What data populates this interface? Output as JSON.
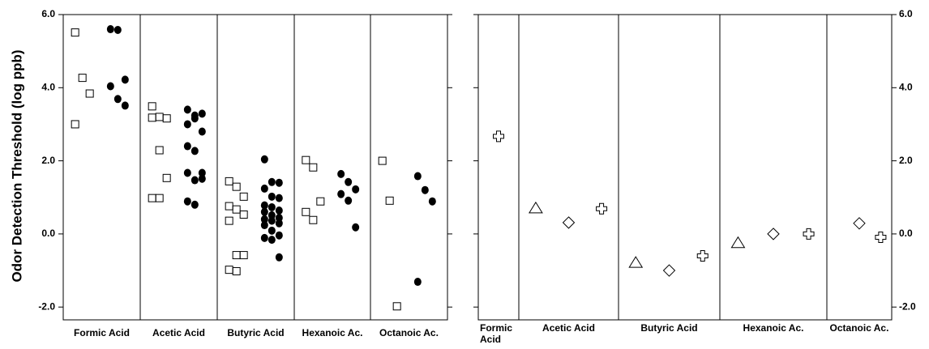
{
  "chart_data": [
    {
      "type": "strip",
      "ylabel": "Odor Detection Threshold (log ppb)",
      "categories": [
        "Formic Acid",
        "Acetic Acid",
        "Butyric Acid",
        "Hexanoic Ac.",
        "Octanoic Ac."
      ],
      "ylim": [
        -2.35,
        6
      ],
      "yticks": [
        {
          "value": -2,
          "label": "-2.0"
        },
        {
          "value": 0,
          "label": "0.0"
        },
        {
          "value": 2,
          "label": "2.0"
        },
        {
          "value": 4,
          "label": "4.0"
        },
        {
          "value": 6,
          "label": "6.0"
        }
      ],
      "axis_side": "left",
      "series": [
        {
          "marker": "square",
          "color": "#000000",
          "values": [
            [
              5.51,
              4.27,
              3.84,
              3.0
            ],
            [
              3.49,
              3.2,
              3.16,
              3.18,
              2.29,
              1.53,
              0.98,
              0.98
            ],
            [
              1.44,
              1.29,
              1.02,
              0.76,
              0.67,
              0.53,
              0.36,
              -0.58,
              -0.58,
              -0.98,
              -1.02
            ],
            [
              2.02,
              1.82,
              0.89,
              0.6,
              0.38
            ],
            [
              2.0,
              0.91,
              -1.98
            ]
          ]
        },
        {
          "marker": "circle",
          "color": "#000000",
          "values": [
            [
              5.6,
              5.58,
              4.22,
              4.04,
              3.69,
              3.51
            ],
            [
              3.4,
              3.24,
              3.29,
              3.0,
              3.16,
              2.8,
              2.4,
              2.27,
              1.67,
              1.67,
              1.47,
              1.51,
              0.89,
              0.8
            ],
            [
              2.04,
              1.42,
              1.4,
              1.24,
              1.02,
              0.98,
              0.78,
              0.73,
              0.64,
              0.6,
              0.51,
              0.44,
              0.4,
              0.36,
              0.29,
              0.24,
              0.09,
              -0.04,
              -0.11,
              -0.16,
              -0.64
            ],
            [
              1.64,
              1.42,
              1.22,
              1.09,
              0.91,
              0.18
            ],
            [
              1.58,
              1.2,
              0.89,
              -1.31
            ]
          ]
        }
      ]
    },
    {
      "type": "strip",
      "categories": [
        "Formic Acid",
        "Acetic Acid",
        "Butyric Acid",
        "Hexanoic Ac.",
        "Octanoic Ac."
      ],
      "ylim": [
        -2.35,
        6
      ],
      "yticks": [
        {
          "value": -2,
          "label": "-2.0"
        },
        {
          "value": 0,
          "label": "0.0"
        },
        {
          "value": 2,
          "label": "2.0"
        },
        {
          "value": 4,
          "label": "4.0"
        },
        {
          "value": 6,
          "label": "6.0"
        }
      ],
      "axis_side": "right",
      "series": [
        {
          "marker": "triangle",
          "color": "#000000",
          "values": [
            null,
            0.71,
            -0.78,
            -0.24,
            null
          ]
        },
        {
          "marker": "diamond",
          "color": "#000000",
          "values": [
            null,
            0.31,
            -1.0,
            0.0,
            0.29
          ]
        },
        {
          "marker": "cross",
          "color": "#000000",
          "values": [
            2.67,
            0.69,
            -0.6,
            0.0,
            -0.09
          ]
        }
      ]
    }
  ]
}
